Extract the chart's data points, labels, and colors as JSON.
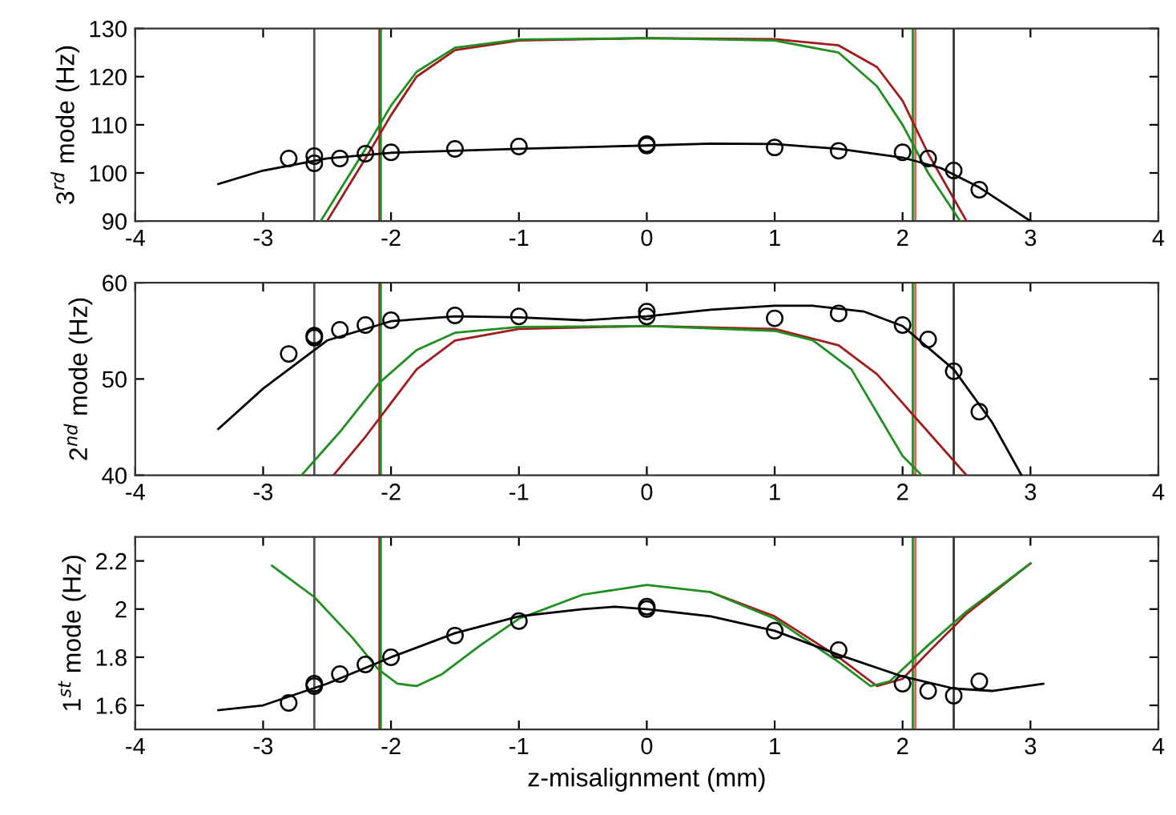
{
  "chart_data": [
    {
      "type": "line",
      "ylabel": "3$^{rd}$ mode (Hz)",
      "xlim": [
        -4,
        4
      ],
      "xticks": [
        -4,
        -3,
        -2,
        -1,
        0,
        1,
        2,
        3,
        4
      ],
      "ylim": [
        90,
        130
      ],
      "yticks": [
        90,
        100,
        110,
        120,
        130
      ],
      "grid": false,
      "ref_lines": [
        {
          "axis": "x",
          "value": -2.6,
          "color": "#555555"
        },
        {
          "axis": "x",
          "value": -2.09,
          "color": "#a01c1c"
        },
        {
          "axis": "x",
          "value": -2.08,
          "color": "#1f8f1f"
        },
        {
          "axis": "x",
          "value": 2.08,
          "color": "#1f8f1f"
        },
        {
          "axis": "x",
          "value": 2.1,
          "color": "#e06060"
        },
        {
          "axis": "x",
          "value": 2.4,
          "color": "#333333"
        }
      ],
      "series": [
        {
          "color": "#a01c1c",
          "x": [
            -2.5,
            -2.2,
            -2,
            -1.8,
            -1.5,
            -1,
            0,
            1,
            1.5,
            1.8,
            2,
            2.2,
            2.5
          ],
          "values": [
            90,
            103,
            112,
            120,
            125.5,
            127.5,
            128,
            127.8,
            126.5,
            122,
            115,
            104,
            90
          ]
        },
        {
          "color": "#1f8f1f",
          "x": [
            -2.55,
            -2.2,
            -2,
            -1.8,
            -1.5,
            -1,
            0,
            1,
            1.5,
            1.8,
            2,
            2.2,
            2.45
          ],
          "values": [
            90,
            105,
            114,
            121,
            126,
            127.7,
            128,
            127.5,
            125,
            118,
            110,
            100,
            90
          ]
        },
        {
          "color": "#000000",
          "x": [
            -3.35,
            -3,
            -2.5,
            -2,
            -1,
            0,
            0.5,
            1,
            1.5,
            2,
            2.3,
            2.6,
            3
          ],
          "values": [
            97.7,
            100.5,
            103,
            104.2,
            105,
            105.7,
            106.1,
            106,
            105,
            103.2,
            101,
            97,
            90
          ]
        },
        {
          "type": "scatter",
          "color": "#000000",
          "marker": "circle",
          "x": [
            -2.8,
            -2.6,
            -2.6,
            -2.4,
            -2.2,
            -2,
            -1.5,
            -1,
            0,
            0,
            1,
            1.5,
            2,
            2.2,
            2.4,
            2.6
          ],
          "values": [
            103,
            103.5,
            102,
            103,
            104,
            104.3,
            105,
            105.5,
            106,
            105.7,
            105.3,
            104.6,
            104.3,
            103,
            100.5,
            96.5
          ]
        }
      ]
    },
    {
      "type": "line",
      "ylabel": "2$^{nd}$ mode (Hz)",
      "xlim": [
        -4,
        4
      ],
      "xticks": [
        -4,
        -3,
        -2,
        -1,
        0,
        1,
        2,
        3,
        4
      ],
      "ylim": [
        40,
        60
      ],
      "yticks": [
        40,
        50,
        60
      ],
      "grid": false,
      "ref_lines": [
        {
          "axis": "x",
          "value": -2.6,
          "color": "#555555"
        },
        {
          "axis": "x",
          "value": -2.09,
          "color": "#a01c1c"
        },
        {
          "axis": "x",
          "value": -2.08,
          "color": "#1f8f1f"
        },
        {
          "axis": "x",
          "value": 2.08,
          "color": "#1f8f1f"
        },
        {
          "axis": "x",
          "value": 2.1,
          "color": "#e06060"
        },
        {
          "axis": "x",
          "value": 2.4,
          "color": "#333333"
        }
      ],
      "series": [
        {
          "color": "#a01c1c",
          "x": [
            -2.45,
            -2.2,
            -2,
            -1.8,
            -1.5,
            -1,
            0,
            1,
            1.5,
            1.8,
            2,
            2.2,
            2.5
          ],
          "values": [
            40,
            44,
            47.5,
            51,
            54,
            55.2,
            55.5,
            55.2,
            53.5,
            50.5,
            47.5,
            44.5,
            40
          ]
        },
        {
          "color": "#1f8f1f",
          "x": [
            -2.7,
            -2.4,
            -2.1,
            -1.8,
            -1.5,
            -1,
            0,
            1,
            1.3,
            1.6,
            1.8,
            2,
            2.15
          ],
          "values": [
            40,
            44.5,
            49.5,
            53,
            54.8,
            55.4,
            55.5,
            55,
            54,
            51,
            46.5,
            42,
            40
          ]
        },
        {
          "color": "#000000",
          "x": [
            -3.35,
            -3,
            -2.5,
            -2,
            -1.5,
            -1,
            -0.5,
            0,
            0.5,
            1,
            1.3,
            1.7,
            2,
            2.4,
            2.7,
            2.93
          ],
          "values": [
            44.8,
            49,
            54,
            56,
            56.5,
            56.4,
            56.1,
            56.5,
            57.2,
            57.6,
            57.6,
            57,
            55.5,
            51,
            45.5,
            40
          ]
        },
        {
          "type": "scatter",
          "color": "#000000",
          "marker": "circle",
          "x": [
            -2.8,
            -2.6,
            -2.6,
            -2.4,
            -2.2,
            -2,
            -1.5,
            -1,
            0,
            0,
            1,
            1.5,
            2,
            2.2,
            2.4,
            2.6
          ],
          "values": [
            52.6,
            54.5,
            54.3,
            55.1,
            55.6,
            56.1,
            56.6,
            56.5,
            57,
            56.5,
            56.3,
            56.8,
            55.6,
            54.1,
            50.8,
            46.6
          ]
        }
      ]
    },
    {
      "type": "line",
      "ylabel": "1$^{st}$ mode (Hz)",
      "xlabel": "z-misalignment (mm)",
      "xlim": [
        -4,
        4
      ],
      "xticks": [
        -4,
        -3,
        -2,
        -1,
        0,
        1,
        2,
        3,
        4
      ],
      "ylim": [
        1.5,
        2.3
      ],
      "yticks": [
        1.6,
        1.8,
        2,
        2.2
      ],
      "grid": false,
      "ref_lines": [
        {
          "axis": "x",
          "value": -2.6,
          "color": "#555555"
        },
        {
          "axis": "x",
          "value": -2.09,
          "color": "#a01c1c"
        },
        {
          "axis": "x",
          "value": -2.08,
          "color": "#1f8f1f"
        },
        {
          "axis": "x",
          "value": 2.08,
          "color": "#1f8f1f"
        },
        {
          "axis": "x",
          "value": 2.1,
          "color": "#e06060"
        },
        {
          "axis": "x",
          "value": 2.4,
          "color": "#333333"
        }
      ],
      "series": [
        {
          "color": "#a01c1c",
          "x": [
            0.5,
            1,
            1.5,
            1.8,
            2,
            2.2,
            2.5,
            3
          ],
          "values": [
            2.07,
            1.97,
            1.8,
            1.68,
            1.71,
            1.82,
            1.98,
            2.19
          ]
        },
        {
          "color": "#1f8f1f",
          "x": [
            -2.93,
            -2.6,
            -2.3,
            -2.1,
            -1.95,
            -1.8,
            -1.6,
            -1.3,
            -1,
            -0.5,
            0,
            0.5,
            1,
            1.5,
            1.75,
            1.9,
            2.2,
            2.5,
            3
          ],
          "values": [
            2.18,
            2.05,
            1.88,
            1.75,
            1.69,
            1.68,
            1.73,
            1.85,
            1.96,
            2.06,
            2.1,
            2.07,
            1.96,
            1.78,
            1.68,
            1.7,
            1.85,
            1.99,
            2.19
          ]
        },
        {
          "color": "#000000",
          "x": [
            -3.35,
            -3,
            -2.5,
            -2,
            -1.5,
            -1,
            -0.5,
            -0.25,
            0,
            0.5,
            1,
            1.5,
            2,
            2.4,
            2.7,
            3.1
          ],
          "values": [
            1.58,
            1.6,
            1.69,
            1.8,
            1.9,
            1.97,
            2.0,
            2.01,
            2.0,
            1.97,
            1.91,
            1.81,
            1.72,
            1.67,
            1.66,
            1.69
          ]
        },
        {
          "type": "scatter",
          "color": "#000000",
          "marker": "circle",
          "x": [
            -2.8,
            -2.6,
            -2.6,
            -2.4,
            -2.2,
            -2,
            -1.5,
            -1,
            0,
            0,
            1,
            1.5,
            2,
            2.2,
            2.4,
            2.6
          ],
          "values": [
            1.61,
            1.69,
            1.68,
            1.73,
            1.77,
            1.8,
            1.89,
            1.95,
            2.01,
            2.0,
            1.91,
            1.83,
            1.69,
            1.66,
            1.64,
            1.7
          ]
        }
      ]
    }
  ]
}
